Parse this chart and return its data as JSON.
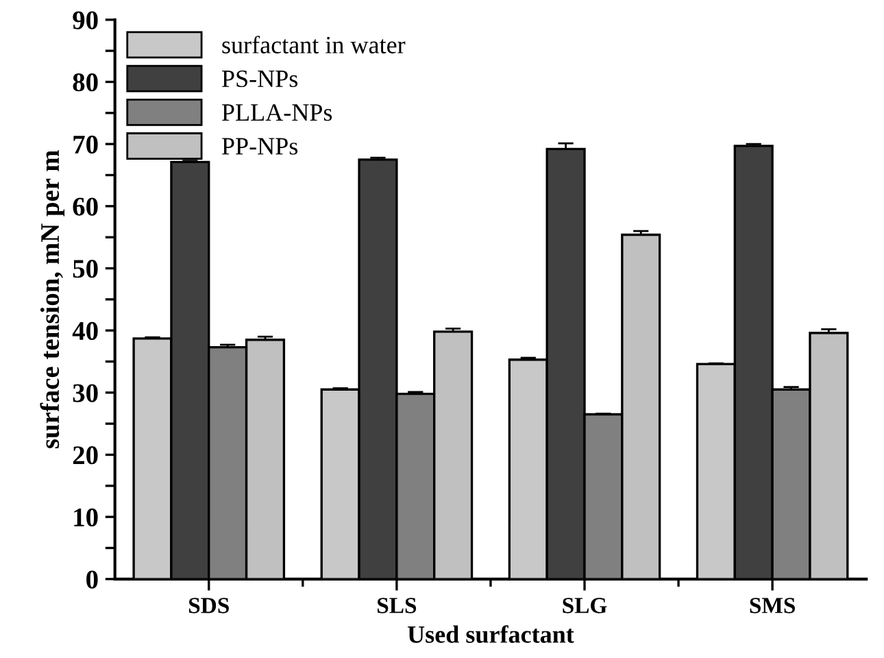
{
  "chart_data": {
    "type": "bar",
    "xlabel": "Used surfactant",
    "ylabel": "surface tension, mN per m",
    "categories": [
      "SDS",
      "SLS",
      "SLG",
      "SMS"
    ],
    "series": [
      {
        "name": "surfactant in water",
        "color": "#c8c8c8",
        "values": [
          38.7,
          30.5,
          35.3,
          34.6
        ],
        "errors": [
          0.2,
          0.2,
          0.3,
          0.1
        ]
      },
      {
        "name": "PS-NPs",
        "color": "#404040",
        "values": [
          67.1,
          67.5,
          69.2,
          69.7
        ],
        "errors": [
          0.2,
          0.3,
          0.9,
          0.3
        ]
      },
      {
        "name": "PLLA-NPs",
        "color": "#808080",
        "values": [
          37.3,
          29.8,
          26.5,
          30.5
        ],
        "errors": [
          0.4,
          0.3,
          0.1,
          0.4
        ]
      },
      {
        "name": "PP-NPs",
        "color": "#c0c0c0",
        "values": [
          38.5,
          39.8,
          55.4,
          39.6
        ],
        "errors": [
          0.5,
          0.5,
          0.6,
          0.6
        ]
      }
    ],
    "ylim": [
      0,
      90
    ],
    "yticks": [
      0,
      {
        "value": 5,
        "label": null
      },
      10,
      {
        "value": 15,
        "label": null
      },
      20,
      {
        "value": 25,
        "label": null
      },
      30,
      {
        "value": 35,
        "label": null
      },
      40,
      {
        "value": 45,
        "label": null
      },
      50,
      {
        "value": 55,
        "label": null
      },
      60,
      {
        "value": 65,
        "label": null
      },
      70,
      {
        "value": 75,
        "label": null
      },
      80,
      {
        "value": 85,
        "label": null
      },
      90
    ],
    "legend": "top left",
    "grid": false
  }
}
